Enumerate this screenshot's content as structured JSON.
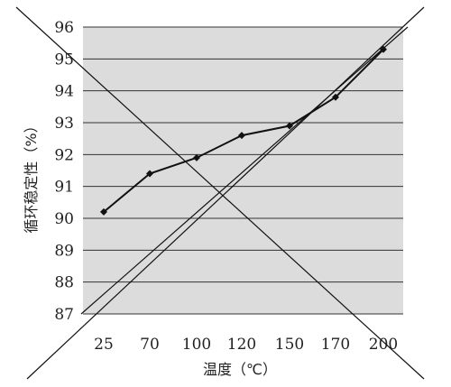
{
  "chart_data": {
    "type": "line",
    "categories": [
      "25",
      "70",
      "100",
      "120",
      "150",
      "170",
      "200"
    ],
    "series": [
      {
        "values": [
          90.2,
          91.4,
          91.9,
          92.6,
          92.9,
          93.8,
          95.3
        ]
      }
    ],
    "xlabel": "温度（℃）",
    "ylabel": "循环稳定性（%）",
    "ylim": [
      87,
      96
    ],
    "yticks": [
      87,
      88,
      89,
      90,
      91,
      92,
      93,
      94,
      95,
      96
    ],
    "grid": true,
    "legend": "none",
    "trendline": true
  }
}
